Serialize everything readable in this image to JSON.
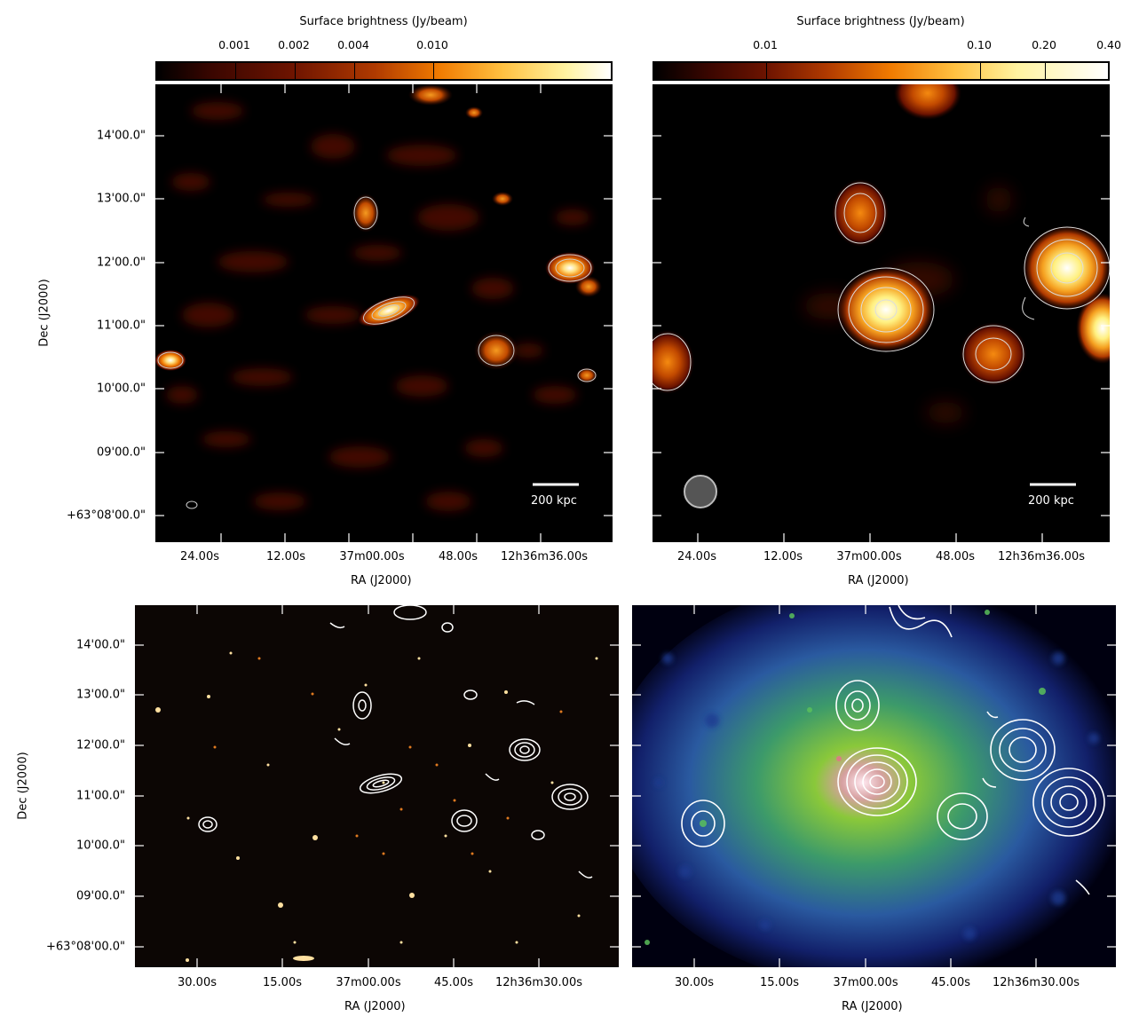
{
  "top_left": {
    "colorbar_title": "Surface brightness (Jy/beam)",
    "colorbar_ticks": [
      "0.001",
      "0.002",
      "0.004",
      "0.010"
    ],
    "scalebar_label": "200 kpc",
    "ra_ticks": [
      "24.00s",
      "12.00s",
      "37m00.00s",
      "48.00s",
      "12h36m36.00s"
    ],
    "dec_ticks": [
      "14'00.0\"",
      "13'00.0\"",
      "12'00.0\"",
      "11'00.0\"",
      "10'00.0\"",
      "09'00.0\"",
      "+63°08'00.0\""
    ],
    "xlabel": "RA (J2000)",
    "ylabel": "Dec (J2000)"
  },
  "top_right": {
    "colorbar_title": "Surface brightness (Jy/beam)",
    "colorbar_ticks": [
      "0.01",
      "0.10",
      "0.20",
      "0.40"
    ],
    "scalebar_label": "200 kpc",
    "ra_ticks": [
      "24.00s",
      "12.00s",
      "37m00.00s",
      "48.00s",
      "12h36m36.00s"
    ],
    "xlabel": "RA (J2000)"
  },
  "bottom_left": {
    "ra_ticks": [
      "30.00s",
      "15.00s",
      "37m00.00s",
      "45.00s",
      "12h36m30.00s"
    ],
    "dec_ticks": [
      "14'00.0\"",
      "13'00.0\"",
      "12'00.0\"",
      "11'00.0\"",
      "10'00.0\"",
      "09'00.0\"",
      "+63°08'00.0\""
    ],
    "xlabel": "RA (J2000)",
    "ylabel": "Dec (J2000)"
  },
  "bottom_right": {
    "ra_ticks": [
      "30.00s",
      "15.00s",
      "37m00.00s",
      "45.00s",
      "12h36m30.00s"
    ],
    "xlabel": "RA (J2000)"
  },
  "colors": {
    "radio_colormap": [
      "#000000",
      "#5a0a00",
      "#a83000",
      "#f07a00",
      "#ffd24a",
      "#ffffff"
    ],
    "xray_colormap": [
      "#000010",
      "#12206a",
      "#2a5aa0",
      "#3c9a6a",
      "#8ac83a"
    ],
    "contour": "#ffffff"
  }
}
